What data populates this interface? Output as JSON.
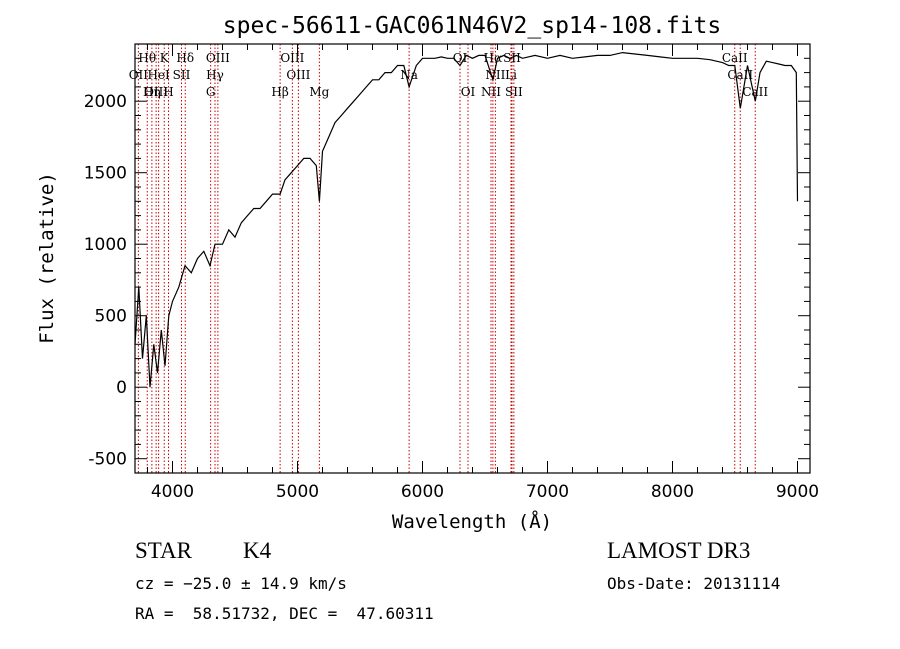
{
  "chart_data": {
    "type": "line",
    "title": "spec-56611-GAC061N46V2_sp14-108.fits",
    "xlabel": "Wavelength (Å)",
    "ylabel": "Flux (relative)",
    "xlim": [
      3700,
      9100
    ],
    "ylim": [
      -600,
      2400
    ],
    "xticks": [
      4000,
      5000,
      6000,
      7000,
      8000,
      9000
    ],
    "yticks": [
      -500,
      0,
      500,
      1000,
      1500,
      2000
    ],
    "series": [
      {
        "name": "flux",
        "x": [
          3700,
          3730,
          3760,
          3790,
          3820,
          3850,
          3880,
          3910,
          3940,
          3970,
          4000,
          4050,
          4100,
          4150,
          4200,
          4250,
          4300,
          4340,
          4400,
          4450,
          4500,
          4550,
          4600,
          4650,
          4700,
          4750,
          4800,
          4861,
          4900,
          4950,
          5000,
          5050,
          5100,
          5150,
          5175,
          5200,
          5250,
          5300,
          5350,
          5400,
          5450,
          5500,
          5550,
          5600,
          5650,
          5700,
          5750,
          5800,
          5850,
          5893,
          5950,
          6000,
          6050,
          6100,
          6150,
          6200,
          6250,
          6300,
          6350,
          6400,
          6450,
          6500,
          6563,
          6600,
          6650,
          6700,
          6750,
          6800,
          6900,
          7000,
          7100,
          7200,
          7300,
          7400,
          7500,
          7600,
          7700,
          7800,
          7900,
          8000,
          8100,
          8200,
          8300,
          8400,
          8450,
          8498,
          8542,
          8600,
          8662,
          8700,
          8750,
          8800,
          8850,
          8900,
          8950,
          8990,
          9000
        ],
        "values": [
          300,
          700,
          200,
          500,
          0,
          300,
          100,
          400,
          150,
          500,
          600,
          700,
          850,
          800,
          900,
          950,
          850,
          1000,
          1000,
          1100,
          1050,
          1150,
          1200,
          1250,
          1250,
          1300,
          1350,
          1350,
          1450,
          1500,
          1550,
          1600,
          1600,
          1550,
          1300,
          1650,
          1750,
          1850,
          1900,
          1950,
          2000,
          2050,
          2100,
          2150,
          2150,
          2200,
          2200,
          2250,
          2250,
          2100,
          2250,
          2300,
          2300,
          2300,
          2310,
          2300,
          2300,
          2250,
          2320,
          2300,
          2320,
          2320,
          2150,
          2300,
          2320,
          2300,
          2320,
          2300,
          2320,
          2300,
          2320,
          2300,
          2310,
          2320,
          2320,
          2340,
          2330,
          2320,
          2310,
          2300,
          2300,
          2300,
          2290,
          2270,
          2250,
          2250,
          1950,
          2250,
          2000,
          2200,
          2280,
          2270,
          2260,
          2250,
          2250,
          2200,
          1300
        ]
      }
    ],
    "spectral_lines": [
      {
        "label": "Hθ",
        "wavelength": 3798,
        "row": 1
      },
      {
        "label": "K",
        "wavelength": 3934,
        "row": 1
      },
      {
        "label": "Hδ",
        "wavelength": 4102,
        "row": 1
      },
      {
        "label": "OIII",
        "wavelength": 4363,
        "row": 1
      },
      {
        "label": "OIII",
        "wavelength": 4959,
        "row": 1
      },
      {
        "label": "OI",
        "wavelength": 6300,
        "row": 1
      },
      {
        "label": "Hα",
        "wavelength": 6563,
        "row": 1
      },
      {
        "label": "SII",
        "wavelength": 6716,
        "row": 1
      },
      {
        "label": "CaII",
        "wavelength": 8498,
        "row": 1
      },
      {
        "label": "OII",
        "wavelength": 3727,
        "row": 2
      },
      {
        "label": "HeI",
        "wavelength": 3889,
        "row": 2
      },
      {
        "label": "SII",
        "wavelength": 4072,
        "row": 2
      },
      {
        "label": "Hγ",
        "wavelength": 4340,
        "row": 2
      },
      {
        "label": "OIII",
        "wavelength": 5007,
        "row": 2
      },
      {
        "label": "Na",
        "wavelength": 5893,
        "row": 2
      },
      {
        "label": "NII",
        "wavelength": 6583,
        "row": 2
      },
      {
        "label": "Li",
        "wavelength": 6708,
        "row": 2
      },
      {
        "label": "CaII",
        "wavelength": 8542,
        "row": 2
      },
      {
        "label": "OIII",
        "wavelength": 3869,
        "row": 3
      },
      {
        "label": "Hη",
        "wavelength": 3835,
        "row": 3
      },
      {
        "label": "H",
        "wavelength": 3968,
        "row": 3
      },
      {
        "label": "G",
        "wavelength": 4305,
        "row": 3
      },
      {
        "label": "Hβ",
        "wavelength": 4861,
        "row": 3
      },
      {
        "label": "Mg",
        "wavelength": 5175,
        "row": 3
      },
      {
        "label": "OI",
        "wavelength": 6364,
        "row": 3
      },
      {
        "label": "NII",
        "wavelength": 6548,
        "row": 3
      },
      {
        "label": "SII",
        "wavelength": 6731,
        "row": 3
      },
      {
        "label": "CaII",
        "wavelength": 8662,
        "row": 3
      }
    ]
  },
  "info": {
    "class_label": "STAR",
    "subclass": "K4",
    "survey": "LAMOST DR3",
    "redshift": "cz = −25.0 ± 14.9 km/s",
    "obs_date": "Obs-Date: 20131114",
    "coords": "RA =  58.51732, DEC =  47.60311"
  },
  "colors": {
    "line_marker": "#cc0000",
    "spectrum": "#000000"
  }
}
